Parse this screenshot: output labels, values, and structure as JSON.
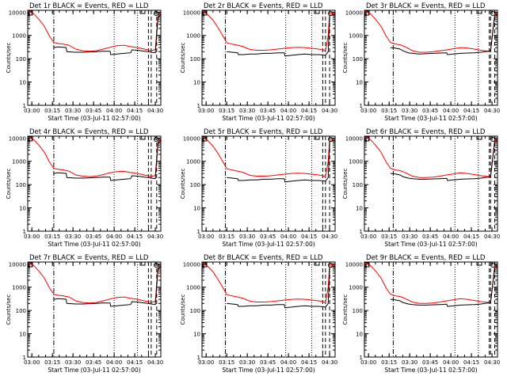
{
  "colors": {
    "events": "#000000",
    "lld": "#ff0000",
    "axes": "#000000",
    "background": "#ffffff"
  },
  "shared": {
    "xlabel": "Start Time (03-Jul-11 02:57:00)",
    "ylabel": "Counts/sec",
    "x_ticks": [
      "03:00",
      "03:15",
      "03:30",
      "03:45",
      "04:00",
      "04:15",
      "04:30"
    ],
    "y_ticks": [
      "1",
      "10",
      "100",
      "1000",
      "10000"
    ],
    "x_tick_minutes": [
      3,
      18,
      33,
      48,
      63,
      78,
      93
    ],
    "xlim_minutes": [
      0,
      97
    ],
    "ylim": [
      1,
      12000
    ],
    "y_scale": "log"
  },
  "chart_data": [
    {
      "type": "line",
      "title": "Det 1r BLACK = Events, RED = LLD",
      "lines": {
        "dash_dot": 19,
        "dotted": [
          63,
          80
        ],
        "dashed": [
          88,
          90,
          94
        ]
      },
      "series": [
        {
          "name": "RED = LLD",
          "x": [
            0,
            4,
            8,
            12,
            16,
            19,
            22,
            26,
            30,
            35,
            40,
            45,
            50,
            55,
            60,
            65,
            70,
            75,
            80,
            85,
            88,
            90,
            93,
            95,
            97
          ],
          "y": [
            11000,
            9000,
            5000,
            2500,
            900,
            500,
            450,
            420,
            380,
            260,
            220,
            210,
            220,
            260,
            310,
            360,
            380,
            330,
            300,
            260,
            240,
            220,
            250,
            8000,
            9000
          ]
        },
        {
          "name": "BLACK = Events",
          "x": [
            19,
            22,
            26,
            28,
            28.5,
            35,
            40,
            45,
            50,
            55,
            60,
            60.5,
            65,
            70,
            75,
            76,
            80,
            85,
            88,
            90,
            93,
            95,
            97
          ],
          "y": [
            300,
            320,
            310,
            300,
            200,
            190,
            190,
            195,
            200,
            210,
            210,
            150,
            160,
            170,
            180,
            240,
            230,
            210,
            200,
            190,
            180,
            6000,
            8000
          ]
        }
      ]
    },
    {
      "type": "line",
      "title": "Det 2r BLACK = Events, RED = LLD",
      "lines": {
        "dash_dot": 17,
        "dotted": [
          61,
          80
        ],
        "dashed": [
          88,
          90,
          93
        ]
      },
      "series": [
        {
          "name": "RED = LLD",
          "x": [
            0,
            4,
            8,
            12,
            16,
            18,
            22,
            26,
            30,
            35,
            40,
            45,
            50,
            55,
            60,
            65,
            70,
            75,
            80,
            85,
            88,
            90,
            92,
            93,
            97
          ],
          "y": [
            11000,
            8000,
            4500,
            2000,
            800,
            480,
            420,
            380,
            330,
            250,
            230,
            230,
            240,
            260,
            280,
            300,
            310,
            300,
            280,
            260,
            240,
            220,
            1000,
            9000,
            9000
          ]
        },
        {
          "name": "BLACK = Events",
          "x": [
            18,
            22,
            26,
            26.5,
            30,
            35,
            40,
            45,
            50,
            55,
            60,
            60.5,
            65,
            70,
            75,
            80,
            85,
            88,
            90,
            92,
            93,
            97
          ],
          "y": [
            200,
            190,
            180,
            150,
            150,
            160,
            160,
            170,
            170,
            180,
            180,
            130,
            140,
            150,
            160,
            150,
            150,
            145,
            140,
            200,
            7000,
            8000
          ]
        }
      ]
    },
    {
      "type": "line",
      "title": "Det 3r BLACK = Events, RED = LLD",
      "lines": {
        "dash_dot": 21,
        "dotted": [
          66,
          83
        ],
        "dashed": [
          91,
          92,
          95
        ]
      },
      "series": [
        {
          "name": "RED = LLD",
          "x": [
            0,
            4,
            8,
            12,
            16,
            19,
            22,
            26,
            30,
            35,
            40,
            45,
            50,
            55,
            60,
            65,
            70,
            75,
            80,
            85,
            88,
            90,
            92,
            95,
            97
          ],
          "y": [
            11000,
            9000,
            5000,
            2500,
            900,
            500,
            430,
            400,
            320,
            220,
            190,
            190,
            200,
            220,
            240,
            270,
            300,
            290,
            260,
            230,
            220,
            210,
            230,
            8000,
            9000
          ]
        },
        {
          "name": "BLACK = Events",
          "x": [
            19,
            22,
            26,
            28,
            32,
            35,
            40,
            45,
            50,
            55,
            60,
            60.5,
            65,
            70,
            75,
            80,
            85,
            88,
            90,
            92,
            95,
            97
          ],
          "y": [
            300,
            290,
            260,
            220,
            180,
            170,
            160,
            165,
            170,
            175,
            180,
            150,
            160,
            170,
            175,
            180,
            190,
            200,
            210,
            220,
            7000,
            8000
          ]
        }
      ]
    },
    {
      "type": "line",
      "title": "Det 4r BLACK = Events, RED = LLD",
      "lines": {
        "dash_dot": 19,
        "dotted": [
          63,
          80
        ],
        "dashed": [
          88,
          90,
          94
        ]
      },
      "series": [
        {
          "name": "RED = LLD",
          "x": [
            0,
            4,
            8,
            12,
            16,
            19,
            22,
            26,
            30,
            35,
            40,
            45,
            50,
            55,
            60,
            65,
            70,
            75,
            80,
            85,
            88,
            90,
            93,
            95,
            97
          ],
          "y": [
            11000,
            9000,
            5000,
            2500,
            900,
            500,
            460,
            420,
            380,
            260,
            230,
            220,
            230,
            270,
            320,
            360,
            370,
            330,
            300,
            260,
            240,
            220,
            250,
            8000,
            9000
          ]
        },
        {
          "name": "BLACK = Events",
          "x": [
            19,
            22,
            26,
            28,
            28.5,
            35,
            40,
            45,
            50,
            55,
            60,
            60.5,
            65,
            70,
            75,
            76,
            80,
            85,
            88,
            90,
            93,
            95,
            97
          ],
          "y": [
            300,
            320,
            310,
            300,
            200,
            190,
            190,
            195,
            200,
            210,
            210,
            150,
            160,
            170,
            180,
            240,
            230,
            210,
            200,
            190,
            180,
            6000,
            8000
          ]
        }
      ]
    },
    {
      "type": "line",
      "title": "Det 5r BLACK = Events, RED = LLD",
      "lines": {
        "dash_dot": 17,
        "dotted": [
          61,
          80
        ],
        "dashed": [
          88,
          90,
          93
        ]
      },
      "series": [
        {
          "name": "RED = LLD",
          "x": [
            0,
            4,
            8,
            12,
            16,
            18,
            22,
            26,
            30,
            35,
            40,
            45,
            50,
            55,
            60,
            65,
            70,
            75,
            80,
            85,
            88,
            90,
            92,
            93,
            97
          ],
          "y": [
            11000,
            8000,
            4500,
            2000,
            800,
            480,
            420,
            380,
            330,
            250,
            230,
            230,
            240,
            260,
            280,
            300,
            310,
            300,
            280,
            260,
            240,
            220,
            1000,
            9000,
            9000
          ]
        },
        {
          "name": "BLACK = Events",
          "x": [
            18,
            22,
            26,
            26.5,
            30,
            35,
            40,
            45,
            50,
            55,
            60,
            60.5,
            65,
            70,
            75,
            80,
            85,
            88,
            90,
            92,
            93,
            97
          ],
          "y": [
            200,
            190,
            180,
            150,
            150,
            160,
            160,
            170,
            170,
            180,
            180,
            130,
            140,
            150,
            160,
            150,
            150,
            145,
            140,
            200,
            7000,
            8000
          ]
        }
      ]
    },
    {
      "type": "line",
      "title": "Det 6r BLACK = Events, RED = LLD",
      "lines": {
        "dash_dot": 21,
        "dotted": [
          66,
          83
        ],
        "dashed": [
          91,
          92,
          95
        ]
      },
      "series": [
        {
          "name": "RED = LLD",
          "x": [
            0,
            4,
            8,
            12,
            16,
            19,
            22,
            26,
            30,
            35,
            40,
            45,
            50,
            55,
            60,
            65,
            70,
            75,
            80,
            85,
            88,
            90,
            92,
            95,
            97
          ],
          "y": [
            11000,
            9000,
            5000,
            2500,
            900,
            500,
            430,
            400,
            320,
            230,
            200,
            200,
            210,
            230,
            260,
            290,
            320,
            300,
            270,
            240,
            230,
            220,
            240,
            8000,
            9000
          ]
        },
        {
          "name": "BLACK = Events",
          "x": [
            19,
            22,
            26,
            28,
            32,
            35,
            40,
            45,
            50,
            55,
            60,
            60.5,
            65,
            70,
            75,
            80,
            85,
            88,
            90,
            92,
            95,
            97
          ],
          "y": [
            300,
            290,
            260,
            220,
            190,
            180,
            170,
            170,
            175,
            180,
            185,
            150,
            160,
            170,
            175,
            180,
            190,
            200,
            210,
            220,
            7000,
            8000
          ]
        }
      ]
    },
    {
      "type": "line",
      "title": "Det 7r BLACK = Events, RED = LLD",
      "lines": {
        "dash_dot": 19,
        "dotted": [
          63,
          80
        ],
        "dashed": [
          88,
          90,
          94
        ]
      },
      "series": [
        {
          "name": "RED = LLD",
          "x": [
            0,
            4,
            8,
            12,
            16,
            19,
            22,
            26,
            30,
            35,
            40,
            45,
            50,
            55,
            60,
            65,
            70,
            75,
            80,
            85,
            88,
            90,
            93,
            95,
            97
          ],
          "y": [
            11000,
            9000,
            5000,
            2500,
            900,
            500,
            450,
            420,
            380,
            260,
            220,
            210,
            220,
            260,
            310,
            360,
            380,
            330,
            300,
            260,
            240,
            220,
            250,
            8000,
            9000
          ]
        },
        {
          "name": "BLACK = Events",
          "x": [
            19,
            22,
            26,
            28,
            28.5,
            35,
            40,
            45,
            50,
            55,
            60,
            60.5,
            65,
            70,
            75,
            76,
            80,
            85,
            88,
            90,
            93,
            95,
            97
          ],
          "y": [
            300,
            320,
            310,
            300,
            200,
            190,
            190,
            195,
            200,
            210,
            210,
            150,
            160,
            170,
            180,
            240,
            230,
            210,
            200,
            190,
            180,
            6000,
            8000
          ]
        }
      ]
    },
    {
      "type": "line",
      "title": "Det 8r BLACK = Events, RED = LLD",
      "lines": {
        "dash_dot": 17,
        "dotted": [
          61,
          80
        ],
        "dashed": [
          88,
          90,
          93
        ]
      },
      "series": [
        {
          "name": "RED = LLD",
          "x": [
            0,
            4,
            8,
            12,
            16,
            18,
            22,
            26,
            30,
            35,
            40,
            45,
            50,
            55,
            60,
            65,
            70,
            75,
            80,
            85,
            88,
            90,
            92,
            93,
            97
          ],
          "y": [
            11000,
            8000,
            4500,
            2000,
            800,
            480,
            420,
            380,
            330,
            250,
            230,
            230,
            240,
            260,
            280,
            300,
            310,
            300,
            280,
            260,
            240,
            220,
            1000,
            9000,
            9000
          ]
        },
        {
          "name": "BLACK = Events",
          "x": [
            18,
            22,
            26,
            26.5,
            30,
            35,
            40,
            45,
            50,
            55,
            60,
            60.5,
            65,
            70,
            75,
            80,
            85,
            88,
            90,
            92,
            93,
            97
          ],
          "y": [
            200,
            190,
            180,
            150,
            150,
            160,
            160,
            170,
            170,
            180,
            180,
            130,
            140,
            150,
            160,
            150,
            150,
            145,
            140,
            200,
            7000,
            8000
          ]
        }
      ]
    },
    {
      "type": "line",
      "title": "Det 9r BLACK = Events, RED = LLD",
      "lines": {
        "dash_dot": 21,
        "dotted": [
          66,
          83
        ],
        "dashed": [
          91,
          92,
          95
        ]
      },
      "series": [
        {
          "name": "RED = LLD",
          "x": [
            0,
            4,
            8,
            12,
            16,
            19,
            22,
            26,
            30,
            35,
            40,
            45,
            50,
            55,
            60,
            65,
            70,
            75,
            80,
            85,
            88,
            90,
            92,
            95,
            97
          ],
          "y": [
            11000,
            9000,
            5000,
            2500,
            900,
            500,
            430,
            400,
            320,
            230,
            200,
            200,
            210,
            230,
            260,
            290,
            320,
            300,
            270,
            240,
            230,
            220,
            240,
            8000,
            9000
          ]
        },
        {
          "name": "BLACK = Events",
          "x": [
            19,
            22,
            26,
            28,
            32,
            35,
            40,
            45,
            50,
            55,
            60,
            60.5,
            65,
            70,
            75,
            80,
            85,
            88,
            90,
            92,
            95,
            97
          ],
          "y": [
            300,
            290,
            260,
            220,
            190,
            180,
            170,
            170,
            175,
            180,
            185,
            150,
            160,
            170,
            175,
            180,
            190,
            200,
            210,
            220,
            7000,
            8000
          ]
        }
      ]
    }
  ]
}
